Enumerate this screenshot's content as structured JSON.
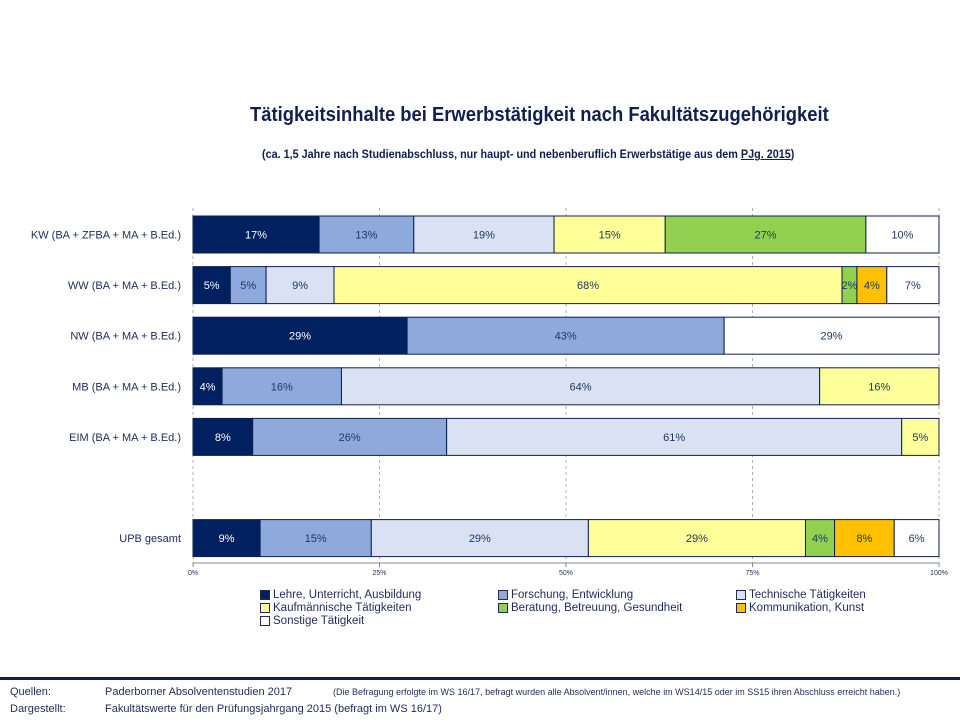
{
  "chart_data": {
    "type": "bar",
    "orientation": "horizontal-stacked-100",
    "title": "Tätigkeitsinhalte bei Erwerbstätigkeit nach Fakultätszugehörigkeit",
    "subtitle": "(ca. 1,5 Jahre nach Studienabschluss, nur haupt- und nebenberuflich Erwerbstätige aus dem ",
    "subtitle_link": "PJg. 2015",
    "subtitle_end": ")",
    "xlim": [
      0,
      100
    ],
    "xticks": [
      "0%",
      "25%",
      "50%",
      "75%",
      "100%"
    ],
    "grid": true,
    "legend_position": "bottom",
    "series": [
      {
        "name": "Lehre, Unterricht, Ausbildung",
        "color": "#002060"
      },
      {
        "name": "Forschung, Entwicklung",
        "color": "#8EA9DB"
      },
      {
        "name": "Technische Tätigkeiten",
        "color": "#D9E1F2"
      },
      {
        "name": "Kaufmännische Tätigkeiten",
        "color": "#FFFF99"
      },
      {
        "name": "Beratung, Betreuung, Gesundheit",
        "color": "#92D050"
      },
      {
        "name": "Kommunikation, Kunst",
        "color": "#FFC000"
      },
      {
        "name": "Sonstige Tätigkeit",
        "color": "#FFFFFF"
      }
    ],
    "categories": [
      {
        "label": "KW (BA + ZFBA + MA + B.Ed.)",
        "values": [
          16.9,
          12.7,
          18.8,
          14.9,
          26.9,
          0,
          9.8
        ],
        "labels": [
          "17%",
          "13%",
          "19%",
          "15%",
          "27%",
          "",
          "10%"
        ]
      },
      {
        "label": "WW (BA + MA + B.Ed.)",
        "values": [
          5.0,
          4.8,
          9.1,
          68.1,
          2.0,
          4.0,
          7.0
        ],
        "labels": [
          "5%",
          "5%",
          "9%",
          "68%",
          "2%",
          "4%",
          "7%"
        ]
      },
      {
        "label": "NW (BA + MA + B.Ed.)",
        "values": [
          28.7,
          42.5,
          0,
          0,
          0,
          0,
          28.8
        ],
        "labels": [
          "29%",
          "43%",
          "",
          "",
          "",
          "",
          "29%"
        ]
      },
      {
        "label": "MB (BA + MA + B.Ed.)",
        "values": [
          3.9,
          16.0,
          64.1,
          16.0,
          0,
          0,
          0
        ],
        "labels": [
          "4%",
          "16%",
          "64%",
          "16%",
          "",
          "",
          ""
        ]
      },
      {
        "label": "EIM (BA + MA + B.Ed.)",
        "values": [
          8.0,
          26.0,
          61.0,
          5.0,
          0,
          0,
          0
        ],
        "labels": [
          "8%",
          "26%",
          "61%",
          "5%",
          "",
          "",
          ""
        ]
      },
      {
        "label": "",
        "values": [
          0,
          0,
          0,
          0,
          0,
          0,
          0
        ],
        "labels": [
          "",
          "",
          "",
          "",
          "",
          "",
          ""
        ]
      },
      {
        "label": "UPB gesamt",
        "values": [
          9.0,
          14.9,
          29.1,
          29.1,
          3.9,
          8.0,
          6.0
        ],
        "labels": [
          "9%",
          "15%",
          "29%",
          "29%",
          "4%",
          "8%",
          "6%"
        ]
      }
    ]
  },
  "footer": {
    "sources_label": "Quellen:",
    "sources_value": "Paderborner Absolventenstudien  2017",
    "sources_note": "(Die Befragung erfolgte im WS 16/17, befragt wurden alle Absolvent/innen, welche im WS14/15 oder im SS15 ihren Abschluss erreicht haben.)",
    "shown_label": "Dargestellt:",
    "shown_value": "Fakultätswerte  für den Prüfungsjahrgang 2015 (befragt im  WS  16/17)"
  }
}
